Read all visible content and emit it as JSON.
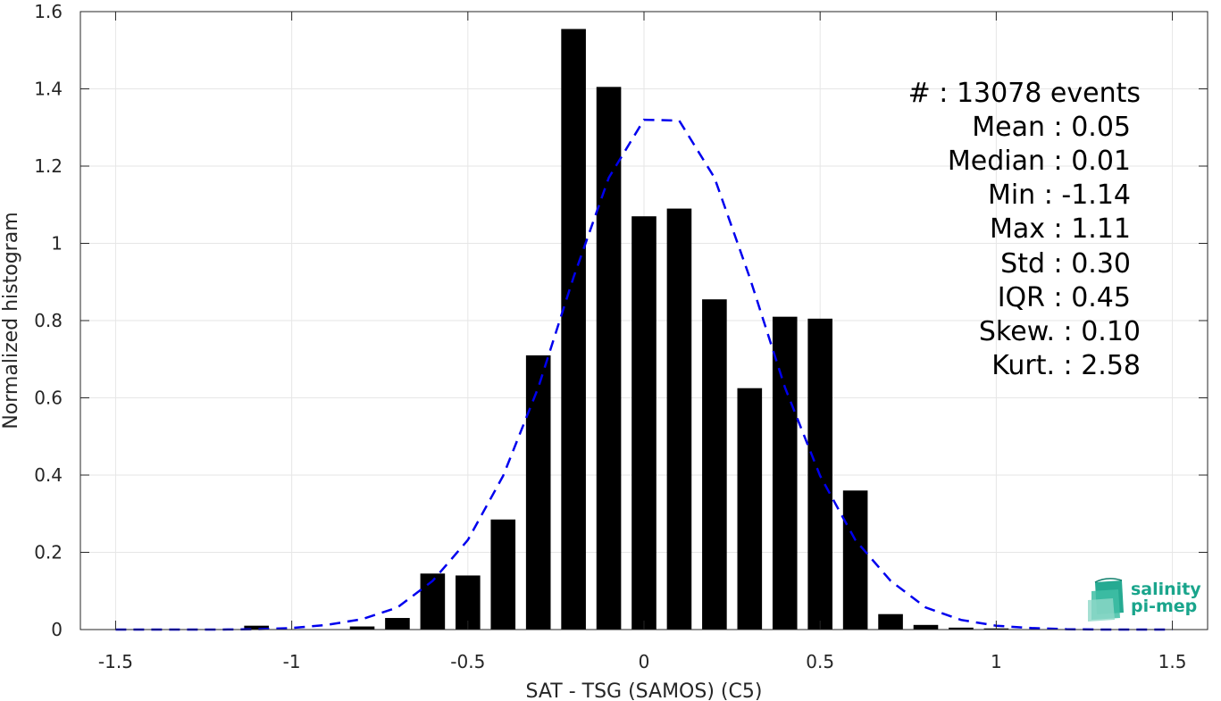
{
  "chart_data": {
    "type": "bar",
    "xlabel": "SAT - TSG (SAMOS) (C5)",
    "ylabel": "Normalized histogram",
    "xlim": [
      -1.6,
      1.6
    ],
    "ylim": [
      0,
      1.6
    ],
    "xticks": [
      -1.5,
      -1,
      -0.5,
      0,
      0.5,
      1,
      1.5
    ],
    "xtick_labels": [
      "-1.5",
      "-1",
      "-0.5",
      "0",
      "0.5",
      "1",
      "1.5"
    ],
    "yticks": [
      0,
      0.2,
      0.4,
      0.6,
      0.8,
      1,
      1.2,
      1.4,
      1.6
    ],
    "ytick_labels": [
      "0",
      "0.2",
      "0.4",
      "0.6",
      "0.8",
      "1",
      "1.2",
      "1.4",
      "1.6"
    ],
    "grid": true,
    "bar_color": "#000000",
    "bar_width": 0.07,
    "bars": [
      {
        "x": -1.5,
        "y": 0.0
      },
      {
        "x": -1.4,
        "y": 0.0
      },
      {
        "x": -1.3,
        "y": 0.0
      },
      {
        "x": -1.2,
        "y": 0.0
      },
      {
        "x": -1.1,
        "y": 0.01
      },
      {
        "x": -1.0,
        "y": 0.0
      },
      {
        "x": -0.9,
        "y": 0.0
      },
      {
        "x": -0.8,
        "y": 0.008
      },
      {
        "x": -0.7,
        "y": 0.03
      },
      {
        "x": -0.6,
        "y": 0.145
      },
      {
        "x": -0.5,
        "y": 0.14
      },
      {
        "x": -0.4,
        "y": 0.285
      },
      {
        "x": -0.3,
        "y": 0.71
      },
      {
        "x": -0.2,
        "y": 1.555
      },
      {
        "x": -0.1,
        "y": 1.405
      },
      {
        "x": 0.0,
        "y": 1.07
      },
      {
        "x": 0.1,
        "y": 1.09
      },
      {
        "x": 0.2,
        "y": 0.855
      },
      {
        "x": 0.3,
        "y": 0.625
      },
      {
        "x": 0.4,
        "y": 0.81
      },
      {
        "x": 0.5,
        "y": 0.805
      },
      {
        "x": 0.6,
        "y": 0.36
      },
      {
        "x": 0.7,
        "y": 0.04
      },
      {
        "x": 0.8,
        "y": 0.012
      },
      {
        "x": 0.9,
        "y": 0.005
      },
      {
        "x": 1.0,
        "y": 0.003
      },
      {
        "x": 1.1,
        "y": 0.0
      },
      {
        "x": 1.2,
        "y": 0.0
      },
      {
        "x": 1.3,
        "y": 0.0
      },
      {
        "x": 1.4,
        "y": 0.0
      },
      {
        "x": 1.5,
        "y": 0.0
      }
    ],
    "fit_curve": {
      "style": "dashed",
      "color": "#0000ee",
      "x": [
        -1.5,
        -1.4,
        -1.3,
        -1.2,
        -1.1,
        -1.0,
        -0.9,
        -0.8,
        -0.7,
        -0.6,
        -0.5,
        -0.4,
        -0.3,
        -0.2,
        -0.1,
        0.0,
        0.1,
        0.2,
        0.3,
        0.4,
        0.5,
        0.6,
        0.7,
        0.8,
        0.9,
        1.0,
        1.1,
        1.2,
        1.3,
        1.4,
        1.5
      ],
      "y": [
        0.0,
        0.0,
        0.0,
        0.0,
        0.001,
        0.004,
        0.012,
        0.027,
        0.057,
        0.126,
        0.232,
        0.398,
        0.627,
        0.912,
        1.17,
        1.32,
        1.318,
        1.17,
        0.912,
        0.627,
        0.398,
        0.232,
        0.126,
        0.057,
        0.025,
        0.01,
        0.004,
        0.001,
        0.0,
        0.0,
        0.0
      ]
    },
    "stats": [
      "#  : 13078 events",
      "Mean : 0.05",
      "Median : 0.01",
      "Min : -1.14",
      "Max : 1.11",
      "Std : 0.30",
      "IQR : 0.45",
      "Skew. : 0.10",
      "Kurt. : 2.58"
    ]
  },
  "logo": {
    "line1": "salinity",
    "line2": "pi-mep",
    "color": "#1aa58c"
  }
}
